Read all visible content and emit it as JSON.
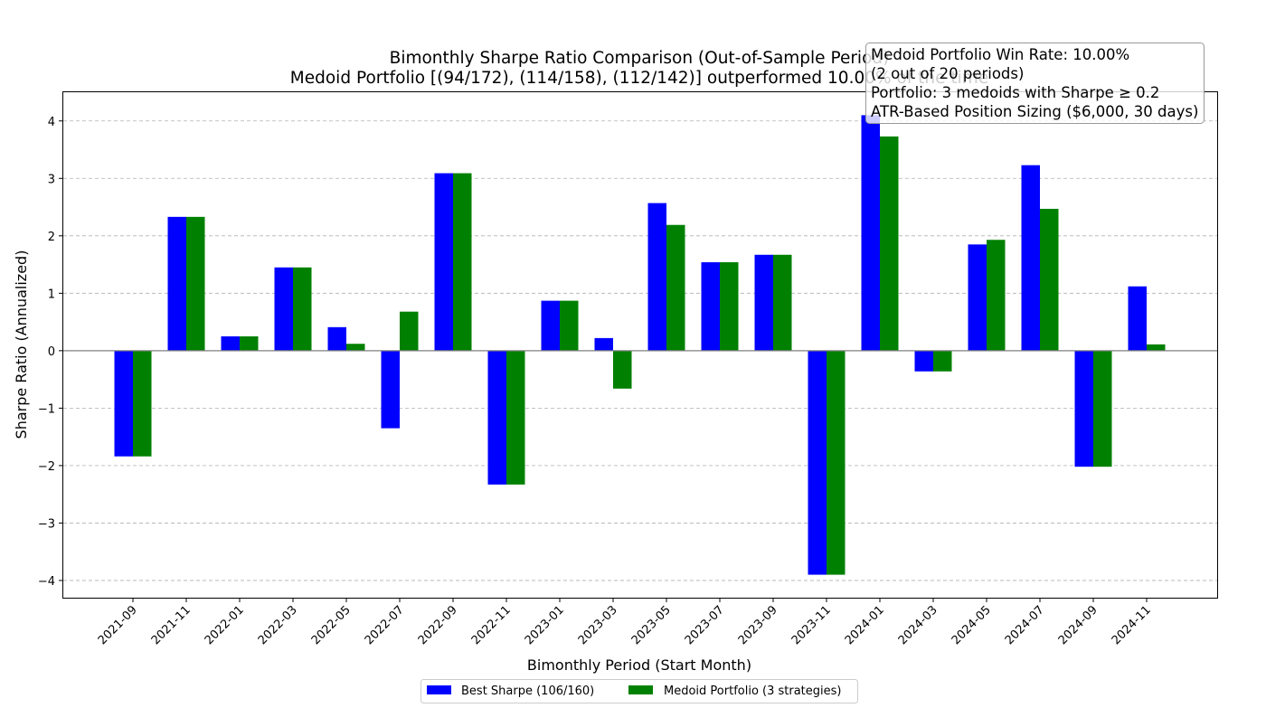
{
  "chart_data": {
    "type": "bar",
    "title_line1": "Bimonthly Sharpe Ratio Comparison (Out-of-Sample Period)",
    "title_line2": "Medoid Portfolio [(94/172), (114/158), (112/142)] outperformed 10.00% of the time",
    "xlabel": "Bimonthly Period (Start Month)",
    "ylabel": "Sharpe Ratio (Annualized)",
    "ylim": [
      -4.3,
      4.5
    ],
    "yticks": [
      -4,
      -3,
      -2,
      -1,
      0,
      1,
      2,
      3,
      4
    ],
    "ytick_labels": [
      "−4",
      "−3",
      "−2",
      "−1",
      "0",
      "1",
      "2",
      "3",
      "4"
    ],
    "grid": true,
    "categories": [
      "2021-09",
      "2021-11",
      "2022-01",
      "2022-03",
      "2022-05",
      "2022-07",
      "2022-09",
      "2022-11",
      "2023-01",
      "2023-03",
      "2023-05",
      "2023-07",
      "2023-09",
      "2023-11",
      "2024-01",
      "2024-03",
      "2024-05",
      "2024-07",
      "2024-09",
      "2024-11"
    ],
    "series": [
      {
        "name": "Best Sharpe (106/160)",
        "color": "#0000ff",
        "values": [
          -1.84,
          2.33,
          0.25,
          1.45,
          0.41,
          -1.35,
          3.09,
          -2.33,
          0.87,
          0.22,
          2.57,
          1.54,
          1.67,
          -3.9,
          4.1,
          -0.36,
          1.85,
          3.23,
          -2.02,
          1.12
        ]
      },
      {
        "name": "Medoid Portfolio (3 strategies)",
        "color": "#008000",
        "values": [
          -1.84,
          2.33,
          0.25,
          1.45,
          0.12,
          0.68,
          3.09,
          -2.33,
          0.87,
          -0.66,
          2.19,
          1.54,
          1.67,
          -3.9,
          3.73,
          -0.36,
          1.93,
          2.47,
          -2.02,
          0.11
        ]
      }
    ],
    "legend_position": "bottom-center",
    "annotation": {
      "position": "top-right",
      "lines": [
        "Medoid Portfolio Win Rate: 10.00%",
        "(2 out of 20 periods)",
        "Portfolio: 3 medoids with Sharpe ≥ 0.2",
        "ATR-Based Position Sizing ($6,000, 30 days)"
      ]
    }
  }
}
